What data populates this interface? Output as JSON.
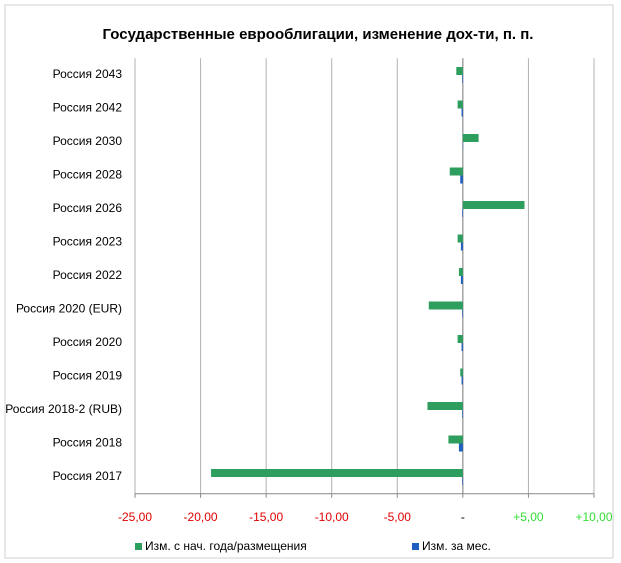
{
  "chart_data": {
    "type": "hbar",
    "title": "Государственные еврооблигации, изменение дох-ти, п. п.",
    "categories": [
      "Россия 2043",
      "Россия 2042",
      "Россия 2030",
      "Россия 2028",
      "Россия 2026",
      "Россия 2023",
      "Россия 2022",
      "Россия 2020 (EUR)",
      "Россия 2020",
      "Россия 2019",
      "Россия 2018-2 (RUB)",
      "Россия 2018",
      "Россия 2017"
    ],
    "series": [
      {
        "name": "Изм. с нач. года/размещения",
        "color": "#2e9e5e",
        "values": [
          -0.5,
          -0.4,
          1.2,
          -1.0,
          4.7,
          -0.4,
          -0.3,
          -2.6,
          -0.4,
          -0.2,
          -2.7,
          -1.1,
          -19.2
        ]
      },
      {
        "name": "Изм. за мес.",
        "color": "#1f5fbf",
        "values": [
          -0.05,
          -0.1,
          0.02,
          -0.2,
          -0.05,
          -0.15,
          -0.15,
          -0.05,
          -0.1,
          -0.1,
          -0.05,
          -0.3,
          -0.05
        ]
      }
    ],
    "xlim": [
      -25,
      10
    ],
    "xticks": [
      {
        "value": -25,
        "label": "-25,00"
      },
      {
        "value": -20,
        "label": "-20,00"
      },
      {
        "value": -15,
        "label": "-15,00"
      },
      {
        "value": -10,
        "label": "-10,00"
      },
      {
        "value": -5,
        "label": "-5,00"
      },
      {
        "value": 0,
        "label": "-"
      },
      {
        "value": 5,
        "label": "+5,00"
      },
      {
        "value": 10,
        "label": "+10,00"
      }
    ],
    "grid": true
  }
}
